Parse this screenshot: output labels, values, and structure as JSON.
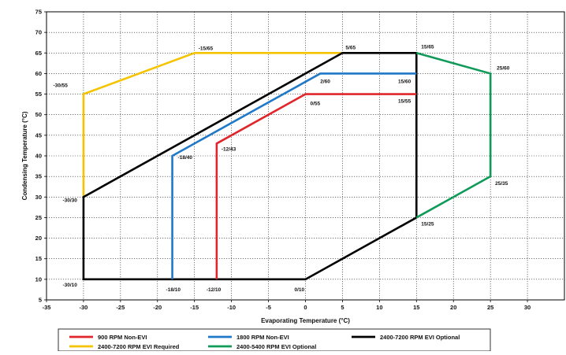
{
  "chart_data": {
    "type": "line",
    "xlabel": "Evaporating Temperature (°C)",
    "ylabel": "Condensing Temperature (°C)",
    "xlim": [
      -35,
      35
    ],
    "ylim": [
      5,
      75
    ],
    "x_ticks": [
      -35,
      -30,
      -25,
      -20,
      -15,
      -10,
      -5,
      0,
      5,
      10,
      15,
      20,
      25,
      30
    ],
    "y_ticks": [
      5,
      10,
      15,
      20,
      25,
      30,
      35,
      40,
      45,
      50,
      55,
      60,
      65,
      70,
      75
    ],
    "grid": true,
    "legend_position": "bottom",
    "series": [
      {
        "name": "900 RPM Non-EVI",
        "color": "#e0262b",
        "points": [
          [
            -12,
            10
          ],
          [
            -12,
            43
          ],
          [
            0,
            55
          ],
          [
            15,
            55
          ]
        ]
      },
      {
        "name": "1800 RPM Non-EVI",
        "color": "#1f78c8",
        "points": [
          [
            -18,
            10
          ],
          [
            -18,
            40
          ],
          [
            2,
            60
          ],
          [
            15,
            60
          ]
        ]
      },
      {
        "name": "2400-7200 RPM EVI Optional",
        "color": "#000000",
        "points": [
          [
            15,
            25
          ],
          [
            15,
            65
          ],
          [
            5,
            65
          ],
          [
            -30,
            30
          ],
          [
            -30,
            10
          ],
          [
            0,
            10
          ],
          [
            15,
            25
          ]
        ]
      },
      {
        "name": "2400-7200 RPM EVI Required",
        "color": "#f5c400",
        "points": [
          [
            -30,
            30
          ],
          [
            -30,
            55
          ],
          [
            -15,
            65
          ],
          [
            5,
            65
          ]
        ]
      },
      {
        "name": "2400-5400 RPM EVI Optional",
        "color": "#0f9a5a",
        "points": [
          [
            15,
            65
          ],
          [
            25,
            60
          ],
          [
            25,
            35
          ],
          [
            15,
            25
          ]
        ]
      }
    ],
    "annotations": [
      {
        "text": "-15/65",
        "x": -15,
        "y": 65
      },
      {
        "text": "5/65",
        "x": 5,
        "y": 65
      },
      {
        "text": "15/65",
        "x": 15,
        "y": 65
      },
      {
        "text": "25/60",
        "x": 25,
        "y": 60
      },
      {
        "text": "-30/55",
        "x": -30,
        "y": 55
      },
      {
        "text": "2/60",
        "x": 2,
        "y": 60
      },
      {
        "text": "15/60",
        "x": 15,
        "y": 60
      },
      {
        "text": "0/55",
        "x": 0,
        "y": 55
      },
      {
        "text": "15/55",
        "x": 15,
        "y": 55
      },
      {
        "text": "-18/40",
        "x": -18,
        "y": 40
      },
      {
        "text": "-12/43",
        "x": -12,
        "y": 43
      },
      {
        "text": "25/35",
        "x": 25,
        "y": 35
      },
      {
        "text": "-30/30",
        "x": -30,
        "y": 30
      },
      {
        "text": "15/25",
        "x": 15,
        "y": 25
      },
      {
        "text": "-30/10",
        "x": -30,
        "y": 10
      },
      {
        "text": "-18/10",
        "x": -18,
        "y": 10
      },
      {
        "text": "-12/10",
        "x": -12,
        "y": 10
      },
      {
        "text": "0/10",
        "x": 0,
        "y": 10
      }
    ],
    "legend": [
      {
        "label": "900 RPM Non-EVI",
        "color": "#e0262b"
      },
      {
        "label": "1800 RPM Non-EVI",
        "color": "#1f78c8"
      },
      {
        "label": "2400-7200 RPM EVI Optional",
        "color": "#000000"
      },
      {
        "label": "2400-7200 RPM EVI Required",
        "color": "#f5c400"
      },
      {
        "label": "2400-5400 RPM EVI Optional",
        "color": "#0f9a5a"
      }
    ]
  }
}
